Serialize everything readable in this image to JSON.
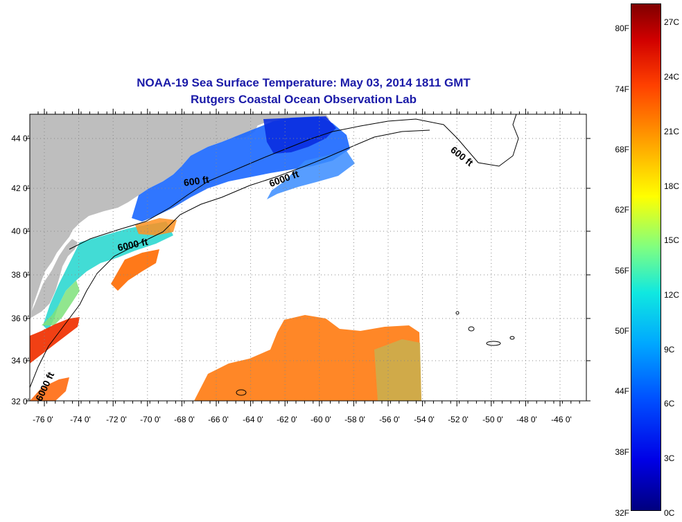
{
  "title": {
    "line1": "NOAA-19 Sea Surface Temperature:  May 03, 2014 1811 GMT",
    "line2": "Rutgers Coastal Ocean Observation Lab"
  },
  "map": {
    "lon_range": [
      -77,
      -44.4
    ],
    "lat_range": [
      32,
      45.3
    ],
    "lat_ticks": [
      "44 0'",
      "42 0'",
      "40 0'",
      "38 0'",
      "36 0'",
      "34 0'",
      "32 0'"
    ],
    "lon_ticks": [
      "-76 0'",
      "-74 0'",
      "-72 0'",
      "-70 0'",
      "-68 0'",
      "-66 0'",
      "-64 0'",
      "-62 0'",
      "-60 0'",
      "-58 0'",
      "-56 0'",
      "-54 0'",
      "-52 0'",
      "-50 0'",
      "-48 0'",
      "-46 0'"
    ],
    "contour_labels": [
      "600 ft",
      "6000 ft",
      "6000 ft",
      "600 ft",
      "6000 ft"
    ],
    "colors": {
      "land": "#bebebe",
      "water_cold": "#0050ff",
      "water_warm": "#ff8000"
    }
  },
  "colorbar": {
    "fahrenheit_ticks": [
      "80F",
      "74F",
      "68F",
      "62F",
      "56F",
      "50F",
      "44F",
      "38F",
      "32F"
    ],
    "celsius_ticks": [
      "27C",
      "24C",
      "21C",
      "18C",
      "15C",
      "12C",
      "9C",
      "6C",
      "3C",
      "0C"
    ]
  }
}
